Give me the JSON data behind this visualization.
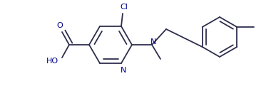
{
  "bg_color": "#ffffff",
  "bond_color": "#2d2d4e",
  "text_color": "#00008B",
  "bond_lw": 1.3,
  "figsize": [
    3.8,
    1.21
  ],
  "dpi": 100,
  "xlim": [
    0.0,
    380.0
  ],
  "ylim": [
    0.0,
    121.0
  ]
}
